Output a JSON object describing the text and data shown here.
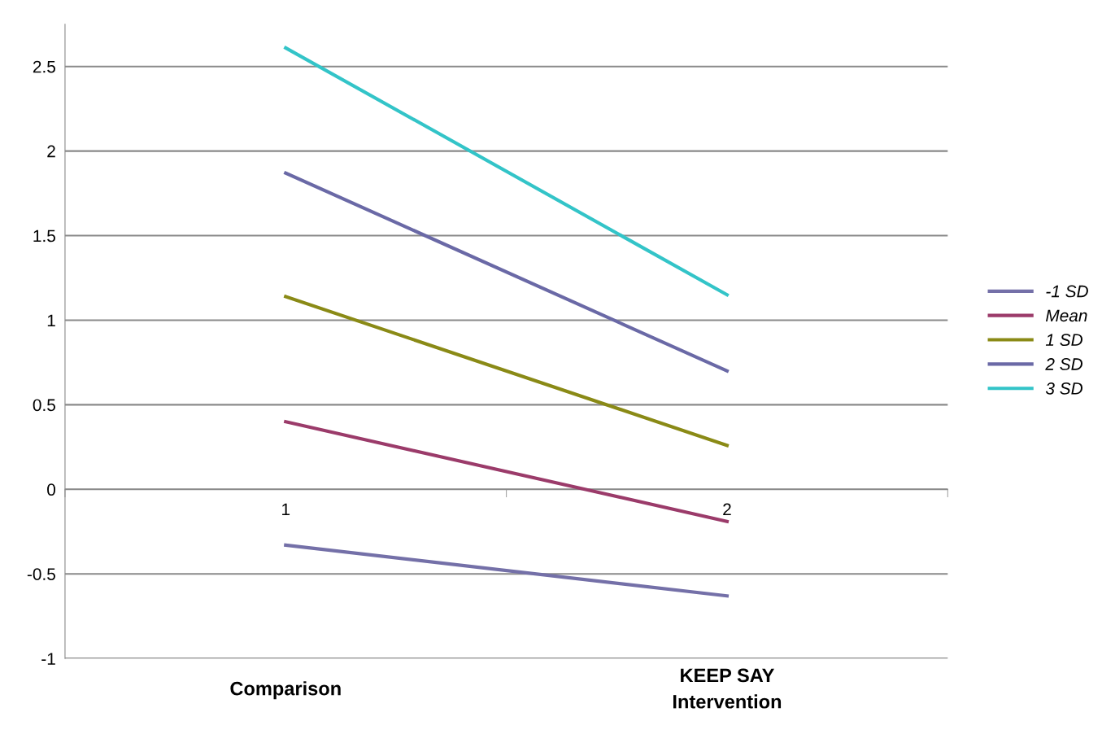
{
  "chart_data": {
    "type": "line",
    "categories": [
      "1",
      "2"
    ],
    "series": [
      {
        "name": "-1 SD",
        "color": "#7470a8",
        "values": [
          -0.33,
          -0.63
        ]
      },
      {
        "name": "Mean",
        "color": "#9b3b6a",
        "values": [
          0.4,
          -0.19
        ]
      },
      {
        "name": "1 SD",
        "color": "#8a8a16",
        "values": [
          1.14,
          0.26
        ]
      },
      {
        "name": "2 SD",
        "color": "#6a69a6",
        "values": [
          1.87,
          0.7
        ]
      },
      {
        "name": "3 SD",
        "color": "#33c4c8",
        "values": [
          2.61,
          1.15
        ]
      }
    ],
    "ylim": [
      -1,
      2.75
    ],
    "yticks": [
      -1,
      -0.5,
      0,
      0.5,
      1,
      1.5,
      2,
      2.5
    ],
    "grid": "y",
    "legend": "right",
    "marker": "none",
    "line_style": "solid",
    "annotations": [
      "Comparison",
      "KEEP SAY\nIntervention"
    ]
  }
}
